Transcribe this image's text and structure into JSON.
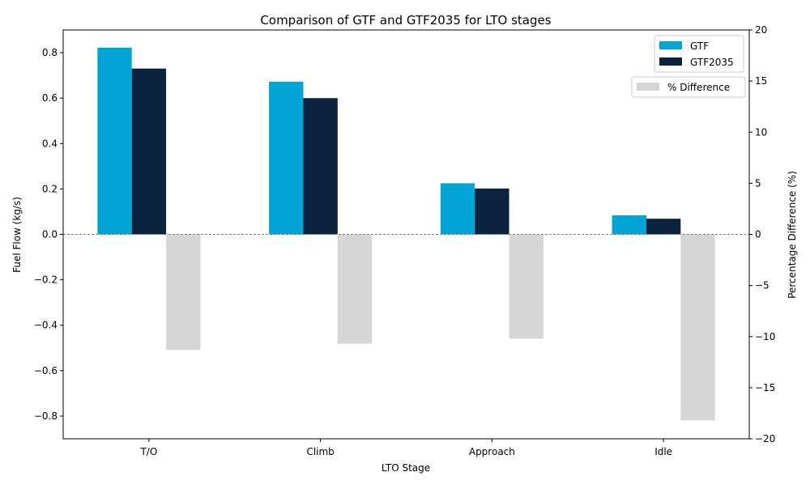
{
  "chart_data": {
    "type": "bar",
    "title": "Comparison of GTF and GTF2035 for LTO stages",
    "xlabel": "LTO Stage",
    "ylabel": "Fuel Flow (kg/s)",
    "y2label": "Percentage Difference (%)",
    "categories": [
      "T/O",
      "Climb",
      "Approach",
      "Idle"
    ],
    "ylim": [
      -0.9,
      0.9
    ],
    "y2lim": [
      -20,
      20
    ],
    "yticks": [
      -0.8,
      -0.6,
      -0.4,
      -0.2,
      0.0,
      0.2,
      0.4,
      0.6,
      0.8
    ],
    "ytick_labels": [
      "−0.8",
      "−0.6",
      "−0.4",
      "−0.2",
      "0.0",
      "0.2",
      "0.4",
      "0.6",
      "0.8"
    ],
    "y2ticks": [
      -20,
      -15,
      -10,
      -5,
      0,
      5,
      10,
      15,
      20
    ],
    "y2tick_labels": [
      "−20",
      "−15",
      "−10",
      "−5",
      "0",
      "5",
      "10",
      "15",
      "20"
    ],
    "series": [
      {
        "name": "GTF",
        "axis": "left",
        "color": "#00a5d6",
        "values": [
          0.822,
          0.672,
          0.225,
          0.084
        ]
      },
      {
        "name": "GTF2035",
        "axis": "left",
        "color": "#0c2340",
        "values": [
          0.73,
          0.6,
          0.202,
          0.069
        ]
      },
      {
        "name": "% Difference",
        "axis": "right",
        "color": "#d6d6d6",
        "values": [
          -11.3,
          -10.7,
          -10.2,
          -18.2
        ]
      }
    ],
    "zero_line": {
      "style": "dashed",
      "color": "#808080"
    },
    "legend": [
      {
        "position": "upper-right",
        "entries": [
          "GTF",
          "GTF2035"
        ]
      },
      {
        "position": "upper-right-below",
        "entries": [
          "% Difference"
        ]
      }
    ],
    "grid": false
  }
}
